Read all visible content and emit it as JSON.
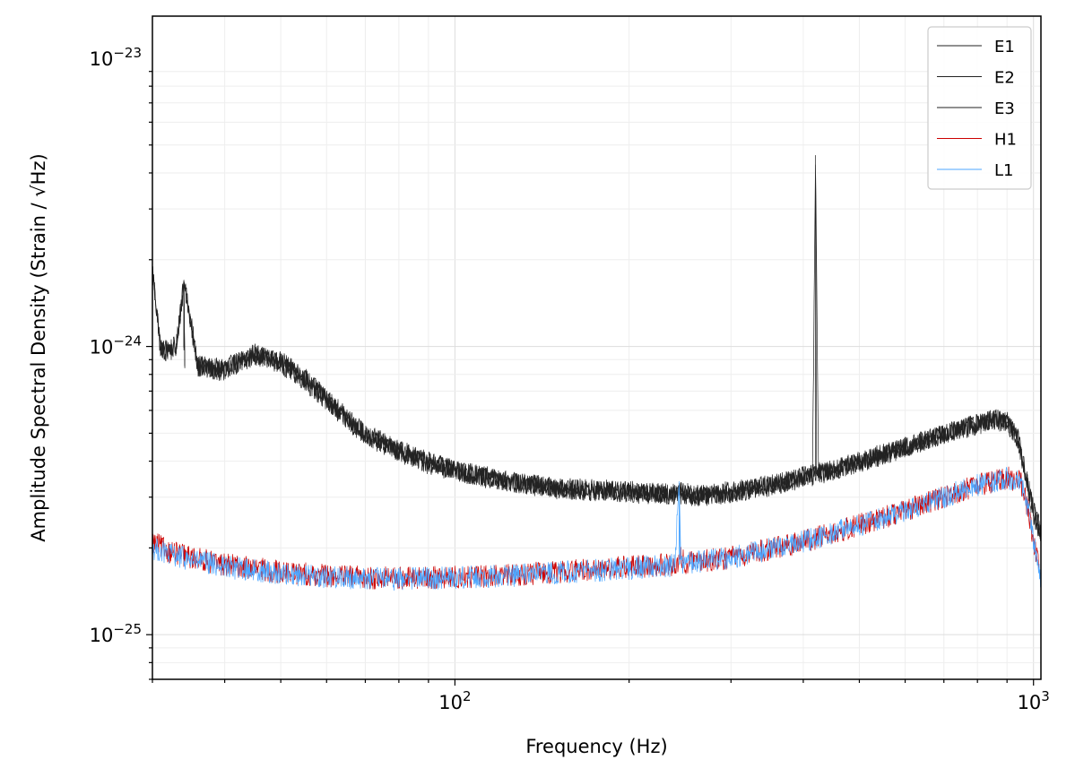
{
  "chart_data": {
    "type": "line",
    "title": "",
    "xlabel": "Frequency (Hz)",
    "ylabel": "Amplitude Spectral Density (Strain / √Hz)",
    "x_scale": "log",
    "y_scale": "log",
    "xlim": [
      30,
      1030
    ],
    "ylim": [
      7e-26,
      1.4e-23
    ],
    "x_tick_labels": [
      {
        "value": 100,
        "base": "10",
        "exp": "2"
      },
      {
        "value": 1000,
        "base": "10",
        "exp": "3"
      }
    ],
    "y_tick_labels": [
      {
        "value": 1e-25,
        "base": "10",
        "exp": "−25"
      },
      {
        "value": 1e-24,
        "base": "10",
        "exp": "−24"
      },
      {
        "value": 1e-23,
        "base": "10",
        "exp": "−23"
      }
    ],
    "grid": true,
    "legend_position": "top-right",
    "series": [
      {
        "name": "E1",
        "color": "#222222",
        "x": [
          30,
          31,
          33,
          34,
          36,
          40,
          45,
          50,
          55,
          62,
          70,
          80,
          90,
          100,
          120,
          150,
          200,
          240,
          245,
          260,
          300,
          360,
          400,
          415,
          420,
          425,
          450,
          550,
          650,
          750,
          850,
          900,
          940,
          970,
          1000,
          1030
        ],
        "y": [
          1.9e-24,
          9.8e-25,
          1e-24,
          1.7e-24,
          8.5e-25,
          8.4e-25,
          9.5e-25,
          8.7e-25,
          7.6e-25,
          6e-25,
          4.9e-25,
          4.3e-25,
          3.9e-25,
          3.7e-25,
          3.4e-25,
          3.2e-25,
          3.1e-25,
          3.05e-25,
          3.3e-25,
          3e-25,
          3.1e-25,
          3.3e-25,
          3.5e-25,
          3.55e-25,
          4.6e-24,
          3.6e-25,
          3.7e-25,
          4.2e-25,
          4.7e-25,
          5.2e-25,
          5.6e-25,
          5.5e-25,
          4.7e-25,
          3.5e-25,
          2.6e-25,
          2.2e-25
        ]
      },
      {
        "name": "E2",
        "color": "#222222",
        "x": [
          30,
          31,
          33,
          34,
          36,
          40,
          45,
          50,
          55,
          62,
          70,
          80,
          90,
          100,
          120,
          150,
          200,
          240,
          260,
          300,
          360,
          400,
          450,
          550,
          650,
          750,
          850,
          900,
          940,
          970,
          1000,
          1030
        ],
        "y": [
          1.8e-24,
          9.6e-25,
          9.7e-25,
          1.65e-24,
          8.4e-25,
          8.2e-25,
          9.3e-25,
          8.9e-25,
          7.8e-25,
          6.2e-25,
          5e-25,
          4.4e-25,
          4e-25,
          3.75e-25,
          3.45e-25,
          3.25e-25,
          3.15e-25,
          3.1e-25,
          3.05e-25,
          3.15e-25,
          3.35e-25,
          3.55e-25,
          3.75e-25,
          4.25e-25,
          4.75e-25,
          5.2e-25,
          5.6e-25,
          5.5e-25,
          4.8e-25,
          3.6e-25,
          2.7e-25,
          2.3e-25
        ]
      },
      {
        "name": "E3",
        "color": "#222222",
        "x": [
          30,
          31,
          33,
          34,
          36,
          40,
          45,
          50,
          55,
          62,
          70,
          80,
          90,
          100,
          120,
          150,
          200,
          240,
          260,
          300,
          360,
          400,
          450,
          550,
          650,
          750,
          850,
          900,
          940,
          970,
          1000,
          1030
        ],
        "y": [
          1.85e-24,
          9.7e-25,
          9.9e-25,
          1.68e-24,
          8.6e-25,
          8.3e-25,
          9.4e-25,
          8.8e-25,
          7.7e-25,
          6.1e-25,
          4.95e-25,
          4.35e-25,
          3.95e-25,
          3.72e-25,
          3.42e-25,
          3.22e-25,
          3.12e-25,
          3.08e-25,
          3.02e-25,
          3.12e-25,
          3.32e-25,
          3.52e-25,
          3.72e-25,
          4.22e-25,
          4.72e-25,
          5.15e-25,
          5.55e-25,
          5.45e-25,
          4.75e-25,
          3.55e-25,
          2.65e-25,
          2.25e-25
        ]
      },
      {
        "name": "H1",
        "color": "#cc0000",
        "x": [
          30,
          32,
          35,
          40,
          50,
          60,
          70,
          80,
          100,
          120,
          150,
          200,
          240,
          245,
          250,
          300,
          400,
          500,
          600,
          700,
          800,
          900,
          950,
          980,
          1010,
          1030
        ],
        "y": [
          2.1e-25,
          1.95e-25,
          1.85e-25,
          1.75e-25,
          1.65e-25,
          1.6e-25,
          1.58e-25,
          1.57e-25,
          1.58e-25,
          1.6e-25,
          1.65e-25,
          1.72e-25,
          1.75e-25,
          1.85e-25,
          1.78e-25,
          1.85e-25,
          2.1e-25,
          2.4e-25,
          2.7e-25,
          3e-25,
          3.3e-25,
          3.5e-25,
          3.4e-25,
          2.7e-25,
          1.9e-25,
          1.6e-25
        ]
      },
      {
        "name": "L1",
        "color": "#4da6ff",
        "x": [
          30,
          32,
          35,
          40,
          50,
          60,
          70,
          80,
          100,
          120,
          150,
          200,
          240,
          244,
          246,
          250,
          300,
          400,
          500,
          600,
          700,
          800,
          900,
          950,
          980,
          1010,
          1030
        ],
        "y": [
          2e-25,
          1.9e-25,
          1.82e-25,
          1.72e-25,
          1.63e-25,
          1.59e-25,
          1.57e-25,
          1.56e-25,
          1.58e-25,
          1.6e-25,
          1.64e-25,
          1.7e-25,
          1.74e-25,
          3.4e-25,
          1.76e-25,
          1.78e-25,
          1.85e-25,
          2.1e-25,
          2.4e-25,
          2.7e-25,
          3e-25,
          3.3e-25,
          3.5e-25,
          3.4e-25,
          2.7e-25,
          1.9e-25,
          1.55e-25
        ]
      }
    ]
  }
}
